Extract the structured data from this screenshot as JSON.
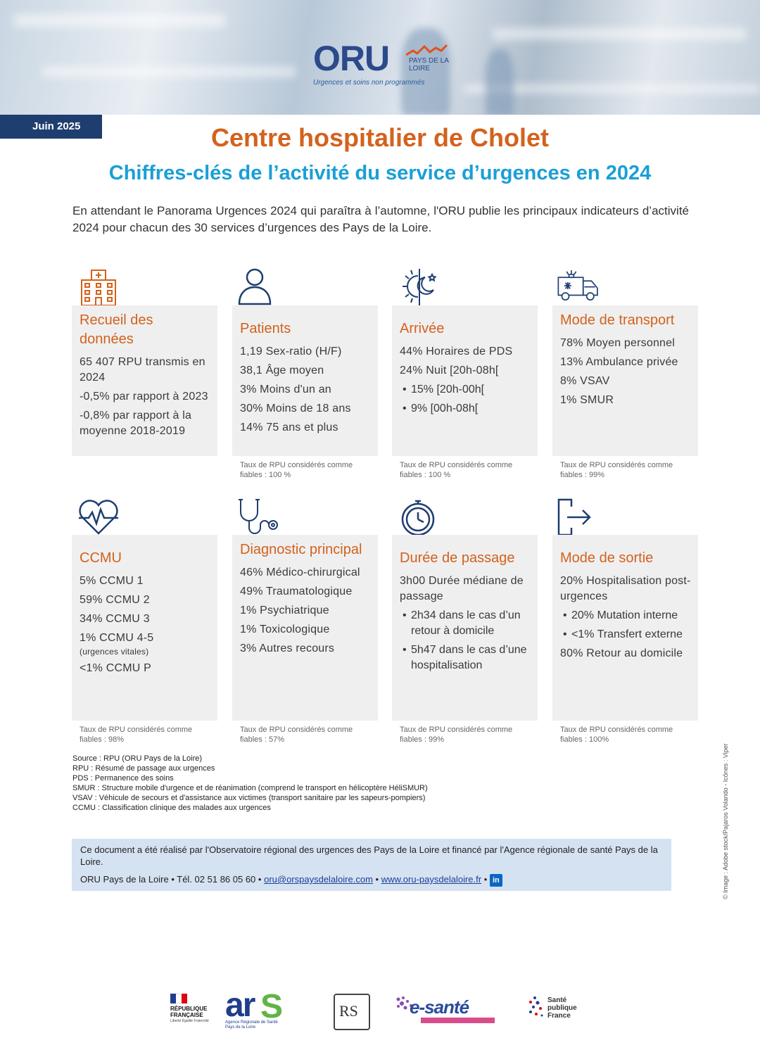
{
  "header": {
    "logo_main": "ORU",
    "logo_region": "PAYS DE LA LOIRE",
    "logo_tagline": "Urgences et soins non programmés",
    "date": "Juin 2025"
  },
  "title": "Centre hospitalier de Cholet",
  "subtitle": "Chiffres-clés de l’activité du service d’urgences en 2024",
  "intro": "En attendant le Panorama Urgences 2024 qui paraîtra à l’automne, l'ORU publie les principaux indicateurs d’activité 2024 pour chacun des 30 services d’urgences des Pays de la Loire.",
  "cards": {
    "recueil": {
      "icon": "hospital-icon",
      "title": "Recueil des données",
      "l1": "65 407 RPU transmis en 2024",
      "l2": "-0,5% par rapport à 2023",
      "l3": "-0,8% par rapport à la moyenne 2018-2019"
    },
    "patients": {
      "icon": "person-icon",
      "title": "Patients",
      "l1": "1,19 Sex-ratio (H/F)",
      "l2": "38,1 Âge moyen",
      "l3": "3% Moins d'un an",
      "l4": "30% Moins de 18 ans",
      "l5": "14% 75 ans et plus",
      "reliability": "Taux de RPU considérés comme fiables : 100 %"
    },
    "arrivee": {
      "icon": "sun-moon-icon",
      "title": "Arrivée",
      "l1": "44% Horaires de PDS",
      "l2": "24% Nuit [20h-08h[",
      "b1": "15% [20h-00h[",
      "b2": "9% [00h-08h[",
      "reliability": "Taux de RPU considérés comme fiables : 100 %"
    },
    "transport": {
      "icon": "ambulance-icon",
      "title": "Mode de transport",
      "l1": "78% Moyen personnel",
      "l2": "13% Ambulance privée",
      "l3": "8% VSAV",
      "l4": "1% SMUR",
      "reliability": "Taux de RPU considérés comme fiables : 99%"
    },
    "ccmu": {
      "icon": "heartbeat-icon",
      "title": "CCMU",
      "l1": "5% CCMU 1",
      "l2": "59% CCMU 2",
      "l3": "34% CCMU 3",
      "l4": "1% CCMU 4-5",
      "l4_note": "(urgences vitales)",
      "l5": "<1% CCMU P",
      "reliability": "Taux de RPU considérés comme fiables : 98%"
    },
    "diagnostic": {
      "icon": "stethoscope-icon",
      "title": "Diagnostic principal",
      "l1": "46% Médico-chirurgical",
      "l2": "49% Traumatologique",
      "l3": "1% Psychiatrique",
      "l4": "1% Toxicologique",
      "l5": "3% Autres recours",
      "reliability": "Taux de RPU considérés comme fiables : 57%"
    },
    "duree": {
      "icon": "stopwatch-icon",
      "title": "Durée de passage",
      "l1": "3h00 Durée médiane de passage",
      "b1": "2h34 dans le cas d’un retour à domicile",
      "b2": "5h47 dans le cas d’une hospitalisation",
      "reliability": "Taux de RPU considérés comme fiables : 99%"
    },
    "sortie": {
      "icon": "exit-icon",
      "title": "Mode de sortie",
      "l1": "20% Hospitalisation post-urgences",
      "b1": "20% Mutation interne",
      "b2": "<1% Transfert externe",
      "l2": "80% Retour au domicile",
      "reliability": "Taux de RPU considérés comme fiables : 100%"
    }
  },
  "definitions": [
    "Source : RPU (ORU Pays de la Loire)",
    "RPU : Résumé de passage aux urgences",
    "PDS : Permanence des soins",
    "SMUR : Structure mobile d'urgence et de réanimation (comprend le transport en hélicoptère HéliSMUR)",
    "VSAV : Véhicule de secours et d'assistance aux victimes (transport sanitaire par les sapeurs-pompiers)",
    "CCMU : Classification clinique des malades aux urgences"
  ],
  "footer": {
    "text": "Ce document a été réalisé par l'Observatoire régional des urgences des Pays de la Loire et financé par l'Agence régionale de santé Pays de la Loire.",
    "org": "ORU Pays de la Loire • Tél. 02 51 86 05 60 •",
    "email": "oru@orspaysdelaloire.com",
    "sep": "•",
    "website": "www.oru-paysdelaloire.fr",
    "sep2": "•",
    "linkedin": "in"
  },
  "credit": "© Image : Adobe stock/Pajaros Volando - Icônes : Viper",
  "partners": {
    "rf": "RÉPUBLIQUE FRANÇAISE",
    "rf_motto": "Liberté Égalité Fraternité",
    "ars_sub": "Agence Régionale de Santé Pays de la Loire",
    "esante": "e-santé",
    "spf": "Santé publique France"
  },
  "colors": {
    "accent_orange": "#d3621d",
    "accent_blue": "#1a9fd6",
    "navy": "#1f3e70",
    "card_bg": "#efefef",
    "footer_bg": "#d5e2f1"
  }
}
